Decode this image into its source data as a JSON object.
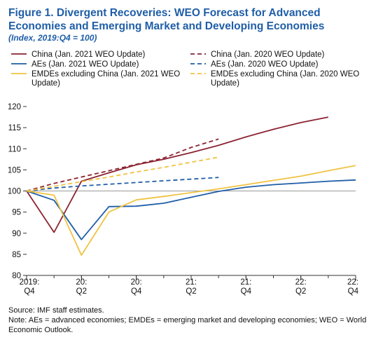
{
  "figure": {
    "title": "Figure 1.  Divergent Recoveries: WEO Forecast for Advanced Economies and Emerging Market and Developing Economies",
    "subtitle": "(Index, 2019:Q4 = 100)"
  },
  "notes": {
    "source": "Source: IMF staff estimates.",
    "note": "Note: AEs = advanced economies; EMDEs = emerging market and developing economies; WEO = World Economic Outlook."
  },
  "chart_data": {
    "type": "line",
    "x": [
      0,
      1,
      2,
      3,
      4,
      5,
      6,
      7,
      8,
      9,
      10,
      11,
      12
    ],
    "x_tick_labels": [
      [
        "2019:",
        "Q4"
      ],
      [
        "20:",
        "Q2"
      ],
      [
        "20:",
        "Q4"
      ],
      [
        "21:",
        "Q2"
      ],
      [
        "21:",
        "Q4"
      ],
      [
        "22:",
        "Q2"
      ],
      [
        "22:",
        "Q4"
      ]
    ],
    "ylim": [
      80,
      120
    ],
    "yticks": [
      80,
      85,
      90,
      95,
      100,
      105,
      110,
      115,
      120
    ],
    "reference_line": 100,
    "legend_placement": "top",
    "series": [
      {
        "name": "China (Jan. 2021 WEO Update)",
        "color": "#8b2332",
        "dash": "solid",
        "values": [
          100,
          90.2,
          102.3,
          104.3,
          106.2,
          107.5,
          109.1,
          110.8,
          112.8,
          114.6,
          116.2,
          117.5,
          null
        ]
      },
      {
        "name": "China (Jan. 2020 WEO Update)",
        "color": "#8b2332",
        "dash": "dashed",
        "values": [
          100,
          101.8,
          103.3,
          104.8,
          106.3,
          107.8,
          110.3,
          112.3,
          null,
          null,
          null,
          null,
          null
        ]
      },
      {
        "name": "AEs (Jan. 2021 WEO Update)",
        "color": "#1f5ea8",
        "dash": "solid",
        "values": [
          100,
          97.8,
          88.5,
          96.3,
          96.4,
          97.1,
          98.5,
          99.9,
          100.9,
          101.5,
          101.9,
          102.3,
          102.6
        ]
      },
      {
        "name": "AEs (Jan. 2020 WEO Update)",
        "color": "#1f5ea8",
        "dash": "dashed",
        "values": [
          100,
          100.7,
          101.2,
          101.6,
          102.0,
          102.4,
          102.8,
          103.2,
          null,
          null,
          null,
          null,
          null
        ]
      },
      {
        "name": "EMDEs excluding China (Jan. 2021 WEO Update)",
        "color": "#f0c341",
        "dash": "solid",
        "values": [
          100,
          99.0,
          84.8,
          95.0,
          97.9,
          98.7,
          99.6,
          100.5,
          101.5,
          102.5,
          103.5,
          104.8,
          106.0
        ]
      },
      {
        "name": "EMDEs excluding China (Jan. 2020 WEO Update)",
        "color": "#f0c341",
        "dash": "dashed",
        "values": [
          100,
          101.1,
          102.2,
          103.3,
          104.5,
          105.6,
          106.8,
          108.0,
          null,
          null,
          null,
          null,
          null
        ]
      }
    ]
  }
}
